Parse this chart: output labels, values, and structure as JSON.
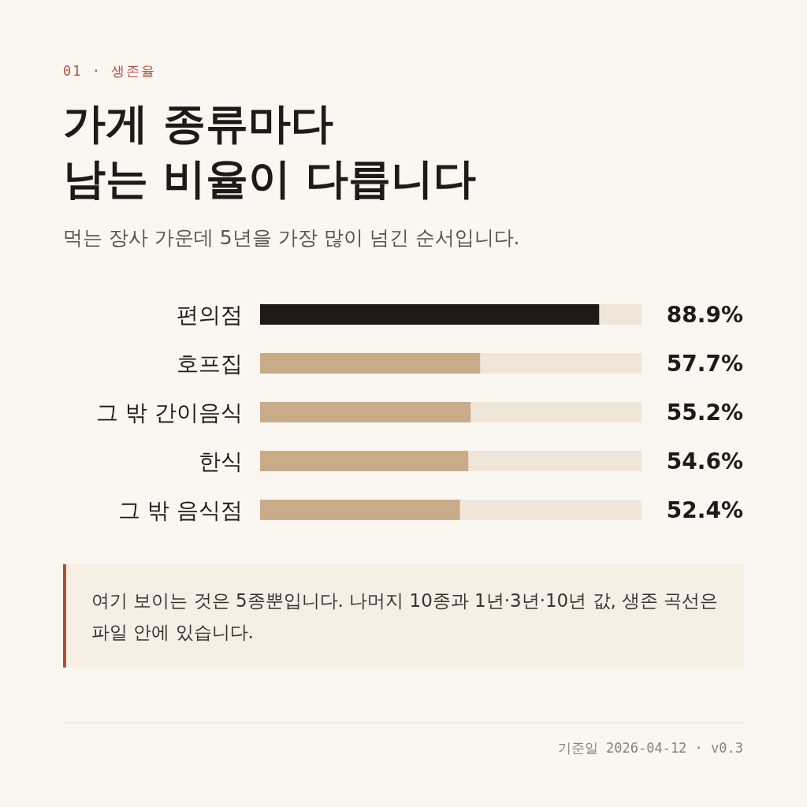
{
  "chart_data": {
    "type": "bar",
    "orientation": "horizontal",
    "title": "가게 종류마다\n남는 비율이 다릅니다",
    "subtitle": "먹는 장사 가운데 5년을 가장 많이 넘긴 순서입니다.",
    "categories": [
      "편의점",
      "호프집",
      "그 밖 간이음식",
      "한식",
      "그 밖 음식점"
    ],
    "values": [
      88.9,
      57.7,
      55.2,
      54.6,
      52.4
    ],
    "colors": [
      "#1f1a17",
      "#c9ab8a",
      "#c9ab8a",
      "#c9ab8a",
      "#c9ab8a"
    ],
    "value_labels": [
      "88.9%",
      "57.7%",
      "55.2%",
      "54.6%",
      "52.4%"
    ],
    "xlim": [
      0,
      100
    ],
    "tick_labels": "y",
    "annotations": [
      "01 · 생존율",
      "여기 보이는 것은 5종뿐입니다. 나머지 10종과 1년·3년·10년 값, 생존 곡선은 파일 안에 있습니다.",
      "기준일 2026-04-12 · v0.3"
    ]
  }
}
